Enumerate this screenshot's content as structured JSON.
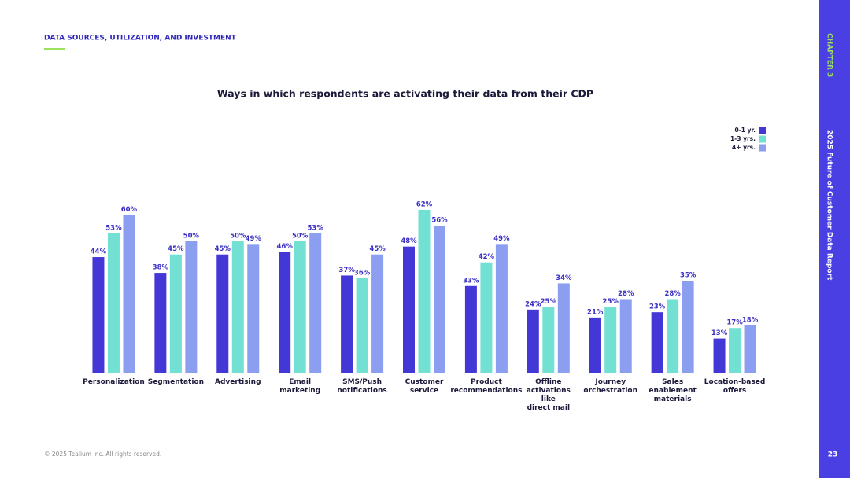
{
  "header": {
    "section": "DATA SOURCES, UTILIZATION, AND INVESTMENT"
  },
  "sidebar": {
    "chapter": "CHAPTER 3",
    "report": "2025 Future of Customer Data Report",
    "page": "23"
  },
  "footer": {
    "copyright": "© 2025 Tealium Inc. All rights reserved."
  },
  "chart_data": {
    "type": "bar",
    "title": "Ways in which respondents are activating their data from their CDP",
    "categories": [
      "Personalization",
      "Segmentation",
      "Advertising",
      "Email\nmarketing",
      "SMS/Push\nnotifications",
      "Customer\nservice",
      "Product\nrecommendations",
      "Offline\nactivations\nlike\ndirect mail",
      "Journey\norchestration",
      "Sales\nenablement\nmaterials",
      "Location-based\noffers"
    ],
    "legend": "top-right",
    "series": [
      {
        "name": "0-1 yr.",
        "color": "#4337d6",
        "values": [
          44,
          38,
          45,
          46,
          37,
          48,
          33,
          24,
          21,
          23,
          13
        ],
        "value_labels": [
          "44%",
          "38%",
          "45%",
          "46%",
          "37%",
          "48%",
          "33%",
          "24%",
          "21%",
          "23%",
          "13%"
        ]
      },
      {
        "name": "1-3 yrs.",
        "color": "#72e0d2",
        "values": [
          53,
          45,
          50,
          50,
          36,
          62,
          42,
          25,
          25,
          28,
          17
        ],
        "value_labels": [
          "53%",
          "45%",
          "50%",
          "50%",
          "36%",
          "62%",
          "42%",
          "25%",
          "25%",
          "28%",
          "17%"
        ]
      },
      {
        "name": "4+ yrs.",
        "color": "#8b9ef0",
        "values": [
          60,
          50,
          49,
          53,
          45,
          56,
          49,
          34,
          28,
          35,
          18
        ],
        "value_labels": [
          "60%",
          "50%",
          "49%",
          "53%",
          "45%",
          "56%",
          "49%",
          "34%",
          "28%",
          "35%",
          "18%"
        ]
      }
    ]
  }
}
